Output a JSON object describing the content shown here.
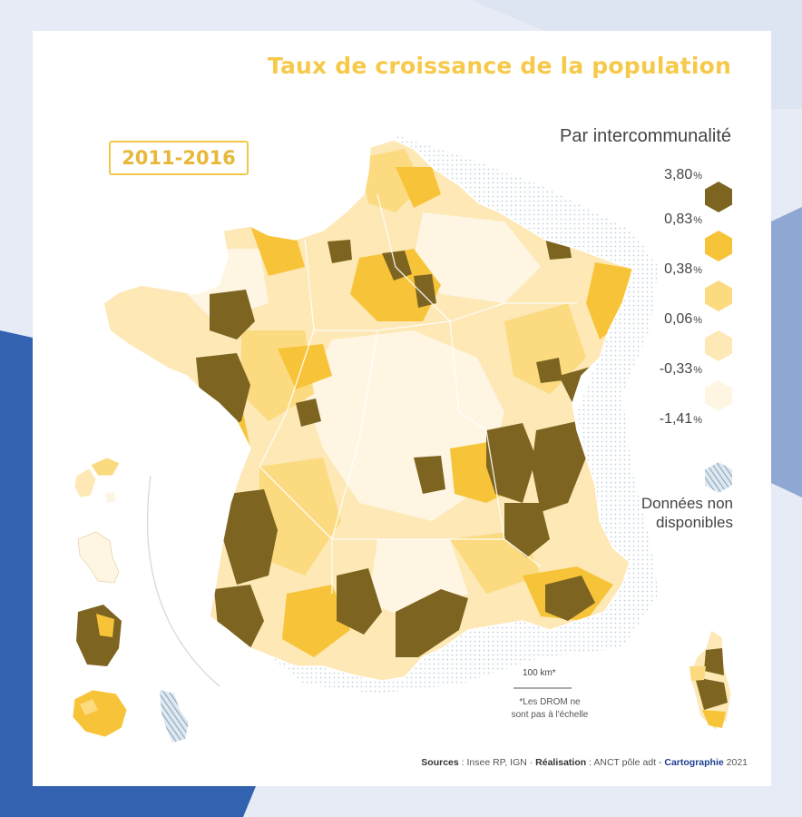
{
  "map": {
    "title": "Taux de croissance de la population",
    "period": "2011-2016",
    "legend_title": "Par intercommunalité",
    "legend": [
      {
        "label": "3,80",
        "unit": "%",
        "color": "#7d6420"
      },
      {
        "label": "0,83",
        "unit": "%",
        "color": "#f7c439"
      },
      {
        "label": "0,38",
        "unit": "%",
        "color": "#fbda80"
      },
      {
        "label": "0,06",
        "unit": "%",
        "color": "#fde8b6"
      },
      {
        "label": "-0,33",
        "unit": "%",
        "color": "#fef6e2"
      },
      {
        "label": "-1,41",
        "unit": "%",
        "color": ""
      }
    ],
    "nodata_line1": "Données non",
    "nodata_line2": "disponibles",
    "nodata_color": "#b8c9d8",
    "scale_label": "100 km*",
    "scale_note_line1": "*Les DROM ne",
    "scale_note_line2": "sont pas à l'échelle",
    "sources_label": "Sources",
    "sources_value": " : Insee RP, IGN · ",
    "realisation_label": "Réalisation",
    "realisation_value": " : ANCT pôle adt - ",
    "brand": "Cartographie",
    "year": " 2021"
  },
  "colors": {
    "background": "#e6ebf5",
    "blue_dark": "#2f5fb0",
    "blue_light": "#8ea6d2",
    "accent": "#f6c94a"
  }
}
